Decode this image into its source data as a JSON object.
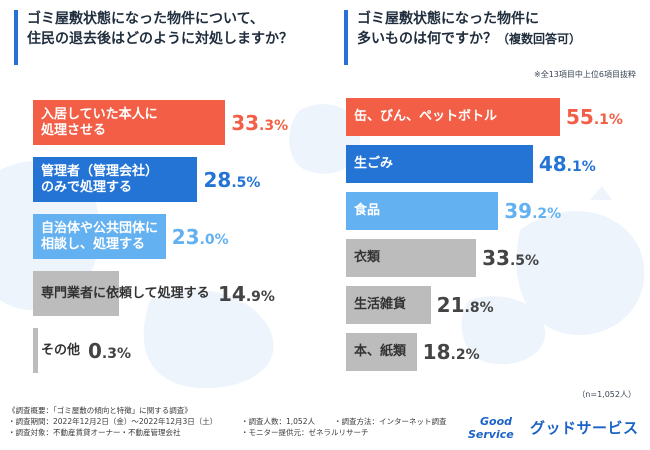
{
  "left_panel": {
    "title_line1": "ゴミ屋敷状態になった物件について、",
    "title_line2": "住民の退去後はどのように対処しますか？"
  },
  "right_panel": {
    "title_line1": "ゴミ屋敷状態になった物件に",
    "title_line2": "多いものは何ですか？",
    "title_suffix": "（複数回答可）",
    "note": "※全13項目中上位6項目抜粋",
    "sample_size": "（n=1,052人）"
  },
  "chart_data": [
    {
      "type": "bar",
      "orientation": "horizontal",
      "title": "ゴミ屋敷状態になった物件について、住民の退去後はどのように対処しますか？",
      "categories": [
        "入居していた本人に処理させる",
        "管理者（管理会社）のみで処理する",
        "自治体や公共団体に相談し、処理する",
        "専門業者に依頼して処理する",
        "その他"
      ],
      "labels": [
        [
          "入居していた本人に",
          "処理させる"
        ],
        [
          "管理者（管理会社）",
          "のみで処理する"
        ],
        [
          "自治体や公共団体に",
          "相談し、処理する"
        ],
        [
          "専門業者に依頼して処理する"
        ],
        [
          "その他"
        ]
      ],
      "values": [
        33.3,
        28.5,
        23.0,
        14.9,
        0.3
      ],
      "value_texts": [
        [
          "33",
          ".3",
          "%"
        ],
        [
          "28",
          ".5",
          "%"
        ],
        [
          "23",
          ".0",
          "%"
        ],
        [
          "14",
          ".9",
          "%"
        ],
        [
          "0",
          ".3",
          "%"
        ]
      ],
      "unit": "%",
      "colors": [
        "#f25f46",
        "#2474d6",
        "#63b1f0",
        "#bcbcbc",
        "#bcbcbc"
      ],
      "value_colors": [
        "#f25f46",
        "#2474d6",
        "#63b1f0",
        "#444444",
        "#444444"
      ],
      "xlim": [
        0,
        35
      ]
    },
    {
      "type": "bar",
      "orientation": "horizontal",
      "title": "ゴミ屋敷状態になった物件に多いものは何ですか？（複数回答可）",
      "categories": [
        "缶、びん、ペットボトル",
        "生ごみ",
        "食品",
        "衣類",
        "生活雑貨",
        "本、紙類"
      ],
      "labels": [
        [
          "缶、びん、ペットボトル"
        ],
        [
          "生ごみ"
        ],
        [
          "食品"
        ],
        [
          "衣類"
        ],
        [
          "生活雑貨"
        ],
        [
          "本、紙類"
        ]
      ],
      "values": [
        55.1,
        48.1,
        39.2,
        33.5,
        21.8,
        18.2
      ],
      "value_texts": [
        [
          "55",
          ".1",
          "%"
        ],
        [
          "48",
          ".1",
          "%"
        ],
        [
          "39",
          ".2",
          "%"
        ],
        [
          "33",
          ".5",
          "%"
        ],
        [
          "21",
          ".8",
          "%"
        ],
        [
          "18",
          ".2",
          "%"
        ]
      ],
      "unit": "%",
      "colors": [
        "#f25f46",
        "#2474d6",
        "#63b1f0",
        "#bcbcbc",
        "#bcbcbc",
        "#bcbcbc"
      ],
      "value_colors": [
        "#f25f46",
        "#2474d6",
        "#63b1f0",
        "#444444",
        "#444444",
        "#444444"
      ],
      "xlim": [
        0,
        55.1
      ]
    }
  ],
  "footer": {
    "heading": "《調査概要：「ゴミ屋敷の傾向と特徴」に関する調査》",
    "period": "・調査期間：2022年12月2日（金）〜2022年12月3日（土）",
    "people": "・調査人数：1,052人",
    "method": "・調査方法：インターネット調査",
    "target": "・調査対象：不動産賃貸オーナー・不動産管理会社",
    "provider": "・モニター提供元：ゼネラルリサーチ"
  },
  "brand": {
    "logo_line1": "Good",
    "logo_line2": "Service",
    "name": "グッドサービス"
  }
}
